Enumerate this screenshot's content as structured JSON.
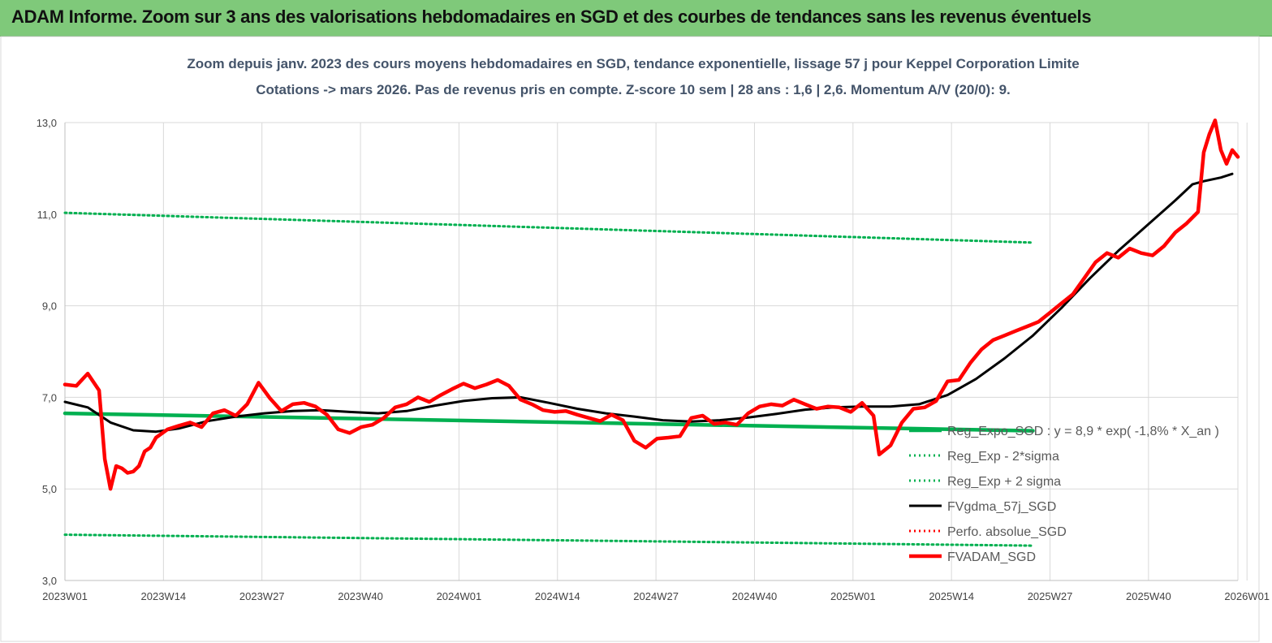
{
  "header": {
    "title": "ADAM Informe. Zoom sur 3 ans des valorisations hebdomadaires en SGD et des courbes de tendances sans les revenus éventuels"
  },
  "chart_data": {
    "type": "line",
    "title": "Zoom depuis janv. 2023 des cours moyens hebdomadaires en SGD, tendance exponentielle, lissage 57 j pour Keppel Corporation Limite",
    "subtitle": "Cotations -> mars 2026. Pas de revenus pris en compte. Z-score 10 sem | 28 ans : 1,6 | 2,6. Momentum A/V (20/0): 9.",
    "ylim": [
      3.0,
      13.0
    ],
    "y_ticks": [
      "3,0",
      "5,0",
      "7,0",
      "9,0",
      "11,0",
      "13,0"
    ],
    "x_ticks": [
      "2023W01",
      "2023W14",
      "2023W27",
      "2023W40",
      "2024W01",
      "2024W14",
      "2024W27",
      "2024W40",
      "2025W01",
      "2025W14",
      "2025W27",
      "2025W40",
      "2026W01"
    ],
    "x_week_index_range": [
      0,
      170
    ],
    "grid": true,
    "legend_placement": "bottom-right",
    "series": [
      {
        "name": "Reg_Expo_SGD : y = 8,9 * exp( -1,8% * X_an )",
        "color": "#00b050",
        "style": "thick",
        "points": [
          [
            0,
            6.65
          ],
          [
            170,
            6.27
          ]
        ]
      },
      {
        "name": "Reg_Exp - 2*sigma",
        "color": "#00b050",
        "style": "dotted",
        "points": [
          [
            0,
            4.0
          ],
          [
            170,
            3.76
          ]
        ]
      },
      {
        "name": "Reg_Exp + 2 sigma",
        "color": "#00b050",
        "style": "dotted",
        "points": [
          [
            0,
            11.03
          ],
          [
            170,
            10.38
          ]
        ]
      },
      {
        "name": "FVgdma_57j_SGD",
        "color": "#000000",
        "style": "solid",
        "points": [
          [
            0,
            6.9
          ],
          [
            4,
            6.78
          ],
          [
            8,
            6.45
          ],
          [
            12,
            6.28
          ],
          [
            16,
            6.25
          ],
          [
            20,
            6.32
          ],
          [
            25,
            6.48
          ],
          [
            30,
            6.58
          ],
          [
            35,
            6.65
          ],
          [
            40,
            6.7
          ],
          [
            45,
            6.72
          ],
          [
            50,
            6.68
          ],
          [
            55,
            6.65
          ],
          [
            60,
            6.7
          ],
          [
            65,
            6.82
          ],
          [
            70,
            6.92
          ],
          [
            75,
            6.98
          ],
          [
            80,
            7.0
          ],
          [
            85,
            6.88
          ],
          [
            90,
            6.75
          ],
          [
            95,
            6.65
          ],
          [
            100,
            6.58
          ],
          [
            105,
            6.5
          ],
          [
            110,
            6.47
          ],
          [
            115,
            6.5
          ],
          [
            120,
            6.56
          ],
          [
            125,
            6.64
          ],
          [
            130,
            6.73
          ],
          [
            135,
            6.78
          ],
          [
            140,
            6.8
          ],
          [
            145,
            6.8
          ],
          [
            150,
            6.85
          ],
          [
            155,
            7.05
          ],
          [
            160,
            7.4
          ],
          [
            165,
            7.85
          ],
          [
            170,
            8.35
          ],
          [
            175,
            8.95
          ],
          [
            180,
            9.6
          ],
          [
            185,
            10.2
          ],
          [
            190,
            10.75
          ],
          [
            195,
            11.3
          ],
          [
            198,
            11.65
          ],
          [
            200,
            11.72
          ],
          [
            203,
            11.8
          ],
          [
            205,
            11.88
          ]
        ]
      },
      {
        "name": "Perfo. absolue_SGD",
        "color": "#ff0000",
        "style": "dotted",
        "points": []
      },
      {
        "name": "FVADAM_SGD",
        "color": "#ff0000",
        "style": "thick",
        "points": [
          [
            0,
            7.28
          ],
          [
            2,
            7.25
          ],
          [
            4,
            7.52
          ],
          [
            6,
            7.15
          ],
          [
            7,
            5.65
          ],
          [
            8,
            5.0
          ],
          [
            9,
            5.5
          ],
          [
            10,
            5.45
          ],
          [
            11,
            5.35
          ],
          [
            12,
            5.38
          ],
          [
            13,
            5.5
          ],
          [
            14,
            5.82
          ],
          [
            15,
            5.9
          ],
          [
            16,
            6.12
          ],
          [
            18,
            6.3
          ],
          [
            20,
            6.38
          ],
          [
            22,
            6.45
          ],
          [
            24,
            6.35
          ],
          [
            26,
            6.65
          ],
          [
            28,
            6.72
          ],
          [
            30,
            6.6
          ],
          [
            32,
            6.85
          ],
          [
            34,
            7.32
          ],
          [
            36,
            6.98
          ],
          [
            38,
            6.7
          ],
          [
            40,
            6.85
          ],
          [
            42,
            6.88
          ],
          [
            44,
            6.8
          ],
          [
            46,
            6.62
          ],
          [
            48,
            6.3
          ],
          [
            50,
            6.22
          ],
          [
            52,
            6.35
          ],
          [
            54,
            6.4
          ],
          [
            56,
            6.55
          ],
          [
            58,
            6.78
          ],
          [
            60,
            6.85
          ],
          [
            62,
            7.0
          ],
          [
            64,
            6.9
          ],
          [
            66,
            7.05
          ],
          [
            68,
            7.18
          ],
          [
            70,
            7.3
          ],
          [
            72,
            7.2
          ],
          [
            74,
            7.28
          ],
          [
            76,
            7.38
          ],
          [
            78,
            7.25
          ],
          [
            80,
            6.95
          ],
          [
            82,
            6.85
          ],
          [
            84,
            6.72
          ],
          [
            86,
            6.68
          ],
          [
            88,
            6.7
          ],
          [
            90,
            6.62
          ],
          [
            92,
            6.55
          ],
          [
            94,
            6.48
          ],
          [
            96,
            6.62
          ],
          [
            98,
            6.5
          ],
          [
            100,
            6.05
          ],
          [
            102,
            5.9
          ],
          [
            104,
            6.1
          ],
          [
            106,
            6.12
          ],
          [
            108,
            6.15
          ],
          [
            110,
            6.55
          ],
          [
            112,
            6.6
          ],
          [
            114,
            6.42
          ],
          [
            116,
            6.45
          ],
          [
            118,
            6.4
          ],
          [
            120,
            6.65
          ],
          [
            122,
            6.8
          ],
          [
            124,
            6.85
          ],
          [
            126,
            6.82
          ],
          [
            128,
            6.95
          ],
          [
            130,
            6.85
          ],
          [
            132,
            6.75
          ],
          [
            134,
            6.8
          ],
          [
            136,
            6.78
          ],
          [
            138,
            6.68
          ],
          [
            140,
            6.88
          ],
          [
            142,
            6.6
          ],
          [
            143,
            5.75
          ],
          [
            145,
            5.95
          ],
          [
            147,
            6.45
          ],
          [
            149,
            6.75
          ],
          [
            151,
            6.78
          ],
          [
            153,
            6.92
          ],
          [
            155,
            7.35
          ],
          [
            157,
            7.38
          ],
          [
            159,
            7.75
          ],
          [
            161,
            8.05
          ],
          [
            163,
            8.25
          ],
          [
            165,
            8.35
          ],
          [
            167,
            8.45
          ],
          [
            169,
            8.55
          ],
          [
            171,
            8.65
          ],
          [
            173,
            8.85
          ],
          [
            175,
            9.05
          ],
          [
            177,
            9.25
          ],
          [
            179,
            9.6
          ],
          [
            181,
            9.95
          ],
          [
            183,
            10.15
          ],
          [
            185,
            10.05
          ],
          [
            187,
            10.25
          ],
          [
            189,
            10.15
          ],
          [
            191,
            10.1
          ],
          [
            193,
            10.3
          ],
          [
            195,
            10.6
          ],
          [
            197,
            10.8
          ],
          [
            199,
            11.05
          ],
          [
            200,
            12.35
          ],
          [
            201,
            12.75
          ],
          [
            202,
            13.05
          ],
          [
            203,
            12.4
          ],
          [
            204,
            12.1
          ],
          [
            205,
            12.4
          ],
          [
            206,
            12.25
          ]
        ]
      }
    ]
  }
}
